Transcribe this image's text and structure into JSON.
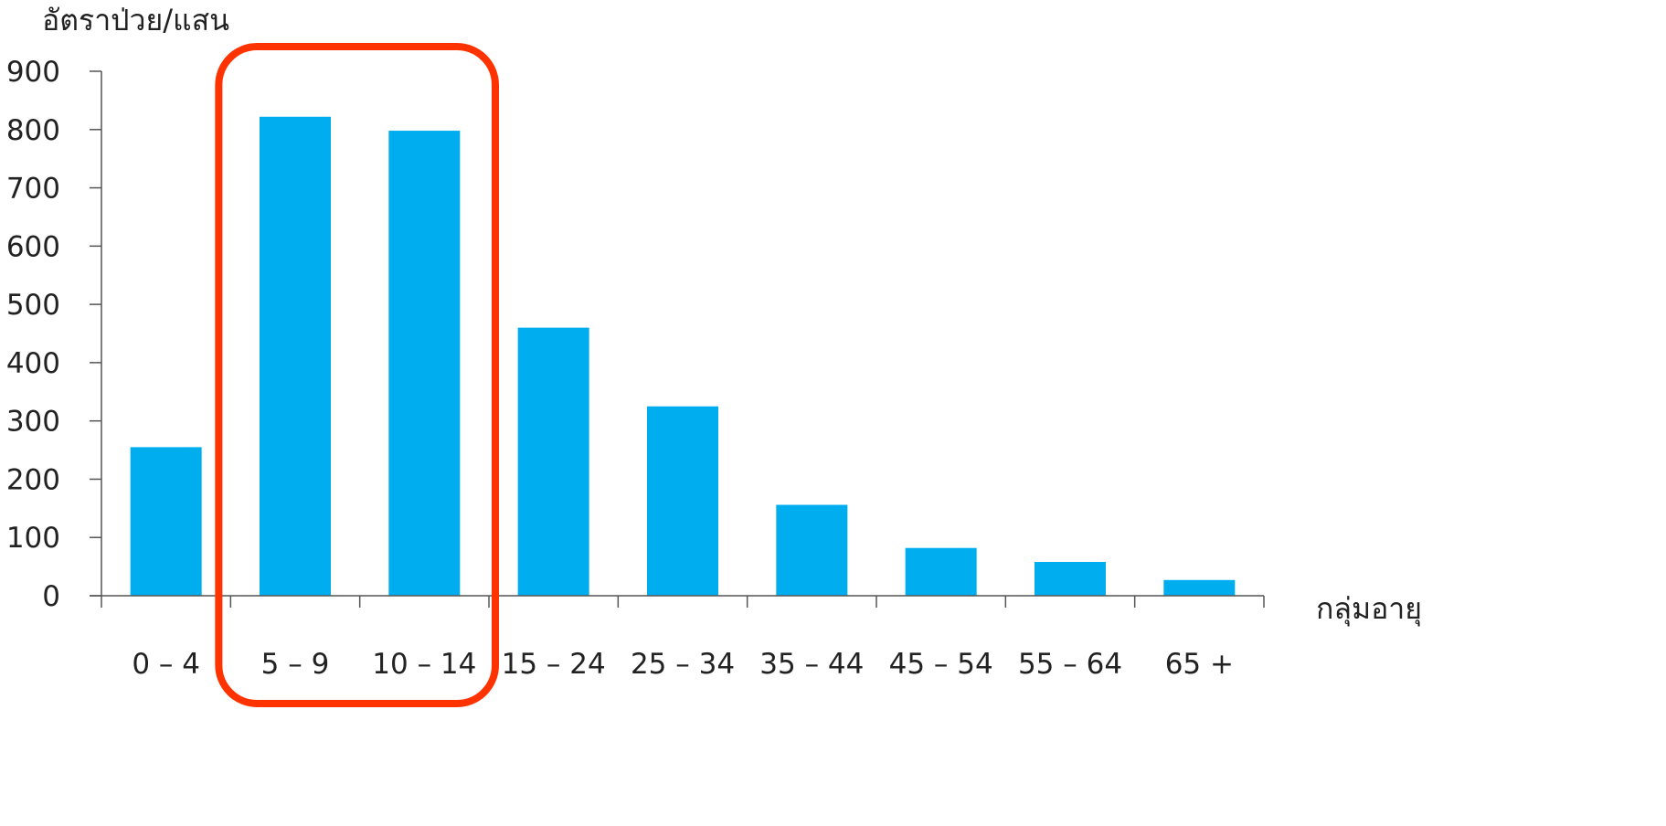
{
  "chart_data": {
    "type": "bar",
    "ylabel": "อัตราป่วย/แสน",
    "xlabel": "กลุ่มอายุ",
    "categories": [
      "0 – 4",
      "5 – 9",
      "10 – 14",
      "15 – 24",
      "25 – 34",
      "35 – 44",
      "45 – 54",
      "55 – 64",
      "65 +"
    ],
    "values": [
      255,
      822,
      798,
      460,
      325,
      156,
      82,
      58,
      27
    ],
    "ylim": [
      0,
      900
    ],
    "yticks": [
      0,
      100,
      200,
      300,
      400,
      500,
      600,
      700,
      800,
      900
    ],
    "grid": false,
    "legend": "none",
    "highlight": {
      "categories": [
        "5 – 9",
        "10 – 14"
      ],
      "shape": "rounded-rectangle"
    },
    "colors": {
      "bar": "#00AEEF",
      "highlight": "#FF3300",
      "axis": "#555555",
      "text": "#222222"
    }
  }
}
